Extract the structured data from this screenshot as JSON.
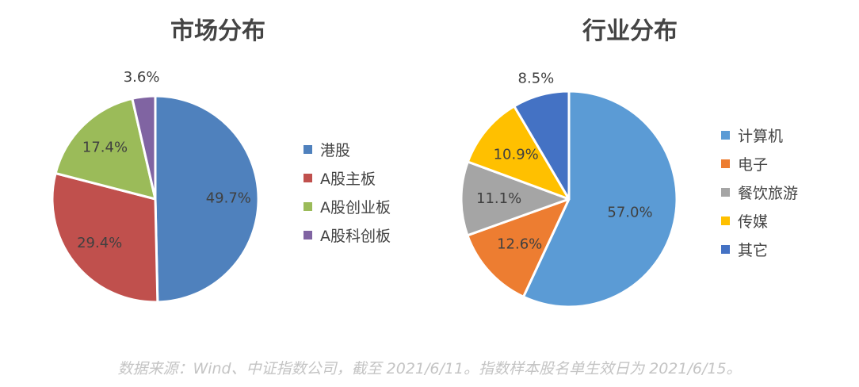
{
  "chart_data": [
    {
      "type": "pie",
      "title": "市场分布",
      "slices": [
        {
          "label": "港股",
          "value": 49.7,
          "display": "49.7%",
          "color": "#4F81BD"
        },
        {
          "label": "A股主板",
          "value": 29.4,
          "display": "29.4%",
          "color": "#C0504D"
        },
        {
          "label": "A股创业板",
          "value": 17.4,
          "display": "17.4%",
          "color": "#9BBB59"
        },
        {
          "label": "A股科创板",
          "value": 3.6,
          "display": "3.6%",
          "color": "#8064A2"
        }
      ],
      "legend_position": "right"
    },
    {
      "type": "pie",
      "title": "行业分布",
      "slices": [
        {
          "label": "计算机",
          "value": 57.0,
          "display": "57.0%",
          "color": "#5B9BD5"
        },
        {
          "label": "电子",
          "value": 12.6,
          "display": "12.6%",
          "color": "#ED7D31"
        },
        {
          "label": "餐饮旅游",
          "value": 11.1,
          "display": "11.1%",
          "color": "#A5A5A5"
        },
        {
          "label": "传媒",
          "value": 10.9,
          "display": "10.9%",
          "color": "#FFC000"
        },
        {
          "label": "其它",
          "value": 8.5,
          "display": "8.5%",
          "color": "#4472C4"
        }
      ],
      "legend_position": "right"
    }
  ],
  "footer": {
    "source_note": "数据来源：Wind、中证指数公司，截至 2021/6/11。指数样本股名单生效日为 2021/6/15。"
  }
}
